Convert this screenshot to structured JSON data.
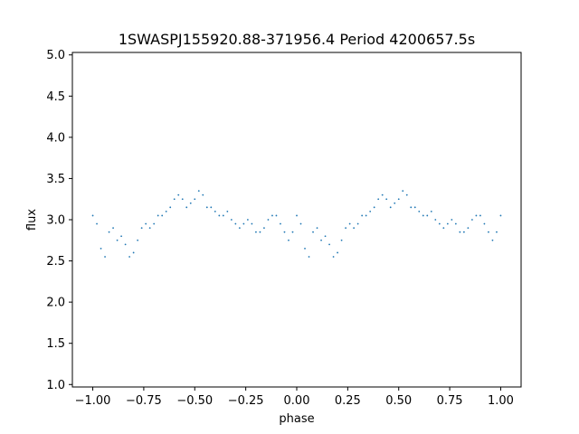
{
  "chart_data": {
    "type": "scatter",
    "title": "1SWASPJ155920.88-371956.4 Period 4200657.5s",
    "xlabel": "phase",
    "ylabel": "flux",
    "xlim": [
      -1.1,
      1.1
    ],
    "ylim": [
      0.97,
      5.03
    ],
    "grid": false,
    "legend": "none",
    "x_ticks": [
      -1.0,
      -0.75,
      -0.5,
      -0.25,
      0.0,
      0.25,
      0.5,
      0.75,
      1.0
    ],
    "x_tick_labels": [
      "−1.00",
      "−0.75",
      "−0.50",
      "−0.25",
      "0.00",
      "0.25",
      "0.50",
      "0.75",
      "1.00"
    ],
    "y_ticks": [
      1.0,
      1.5,
      2.0,
      2.5,
      3.0,
      3.5,
      4.0,
      4.5,
      5.0
    ],
    "y_tick_labels": [
      "1.0",
      "1.5",
      "2.0",
      "2.5",
      "3.0",
      "3.5",
      "4.0",
      "4.5",
      "5.0"
    ],
    "marker_color": "#1f77b4",
    "x": [
      -1.0,
      -0.98,
      -0.96,
      -0.94,
      -0.92,
      -0.9,
      -0.88,
      -0.86,
      -0.84,
      -0.82,
      -0.8,
      -0.78,
      -0.76,
      -0.74,
      -0.72,
      -0.7,
      -0.68,
      -0.66,
      -0.64,
      -0.62,
      -0.6,
      -0.58,
      -0.56,
      -0.54,
      -0.52,
      -0.5,
      -0.48,
      -0.46,
      -0.44,
      -0.42,
      -0.4,
      -0.38,
      -0.36,
      -0.34,
      -0.32,
      -0.3,
      -0.28,
      -0.26,
      -0.24,
      -0.22,
      -0.2,
      -0.18,
      -0.16,
      -0.14,
      -0.12,
      -0.1,
      -0.08,
      -0.06,
      -0.04,
      -0.02,
      0.0,
      0.02,
      0.04,
      0.06,
      0.08,
      0.1,
      0.12,
      0.14,
      0.16,
      0.18,
      0.2,
      0.22,
      0.24,
      0.26,
      0.28,
      0.3,
      0.32,
      0.34,
      0.36,
      0.38,
      0.4,
      0.42,
      0.44,
      0.46,
      0.48,
      0.5,
      0.52,
      0.54,
      0.56,
      0.58,
      0.6,
      0.62,
      0.64,
      0.66,
      0.68,
      0.7,
      0.72,
      0.74,
      0.76,
      0.78,
      0.8,
      0.82,
      0.84,
      0.86,
      0.88,
      0.9,
      0.92,
      0.94,
      0.96,
      0.98,
      1.0
    ],
    "y": [
      3.05,
      2.95,
      2.65,
      2.55,
      2.85,
      2.9,
      2.75,
      2.8,
      2.7,
      2.55,
      2.6,
      2.75,
      2.9,
      2.95,
      2.9,
      2.95,
      3.05,
      3.05,
      3.1,
      3.15,
      3.25,
      3.3,
      3.25,
      3.15,
      3.2,
      3.25,
      3.35,
      3.3,
      3.15,
      3.15,
      3.1,
      3.05,
      3.05,
      3.1,
      3.0,
      2.95,
      2.9,
      2.95,
      3.0,
      2.95,
      2.85,
      2.85,
      2.9,
      3.0,
      3.05,
      3.05,
      2.95,
      2.85,
      2.75,
      2.85,
      3.05,
      2.95,
      2.65,
      2.55,
      2.85,
      2.9,
      2.75,
      2.8,
      2.7,
      2.55,
      2.6,
      2.75,
      2.9,
      2.95,
      2.9,
      2.95,
      3.05,
      3.05,
      3.1,
      3.15,
      3.25,
      3.3,
      3.25,
      3.15,
      3.2,
      3.25,
      3.35,
      3.3,
      3.15,
      3.15,
      3.1,
      3.05,
      3.05,
      3.1,
      3.0,
      2.95,
      2.9,
      2.95,
      3.0,
      2.95,
      2.85,
      2.85,
      2.9,
      3.0,
      3.05,
      3.05,
      2.95,
      2.85,
      2.75,
      2.85,
      3.05
    ]
  }
}
